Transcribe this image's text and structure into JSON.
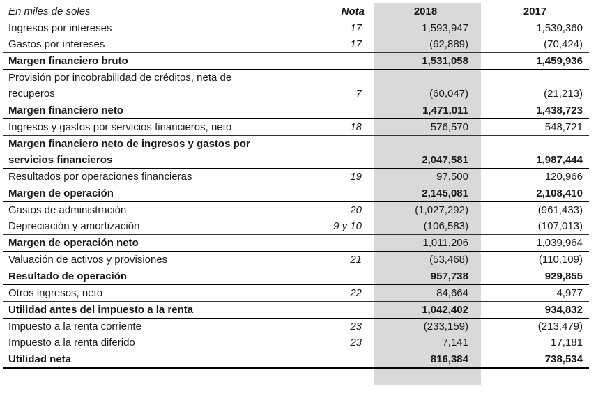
{
  "header": {
    "label": "En miles de soles",
    "nota": "Nota",
    "year1": "2018",
    "year2": "2017"
  },
  "rows": [
    {
      "label": "Ingresos por intereses",
      "nota": "17",
      "v2018": "1,593,947",
      "v2017": "1,530,360",
      "style": "plain"
    },
    {
      "label": "Gastos por intereses",
      "nota": "17",
      "v2018": "(62,889)",
      "v2017": "(70,424)",
      "style": "row"
    },
    {
      "label": "Margen financiero bruto",
      "nota": "",
      "v2018": "1,531,058",
      "v2017": "1,459,936",
      "style": "bold"
    },
    {
      "label": "Provisión por incobrabilidad de créditos, neta de",
      "nota": "",
      "v2018": "",
      "v2017": "",
      "style": "plain"
    },
    {
      "label": "recuperos",
      "nota": "7",
      "v2018": "(60,047)",
      "v2017": "(21,213)",
      "style": "row"
    },
    {
      "label": "Margen financiero neto",
      "nota": "",
      "v2018": "1,471,011",
      "v2017": "1,438,723",
      "style": "bold"
    },
    {
      "label": "Ingresos y gastos por servicios financieros, neto",
      "nota": "18",
      "v2018": "576,570",
      "v2017": "548,721",
      "style": "row"
    },
    {
      "label": "Margen financiero neto de ingresos y gastos por",
      "nota": "",
      "v2018": "",
      "v2017": "",
      "style": "bold-plain"
    },
    {
      "label": "servicios financieros",
      "nota": "",
      "v2018": "2,047,581",
      "v2017": "1,987,444",
      "style": "bold"
    },
    {
      "label": "Resultados por operaciones financieras",
      "nota": "19",
      "v2018": "97,500",
      "v2017": "120,966",
      "style": "row"
    },
    {
      "label": "Margen de operación",
      "nota": "",
      "v2018": "2,145,081",
      "v2017": "2,108,410",
      "style": "bold"
    },
    {
      "label": "Gastos de administración",
      "nota": "20",
      "v2018": "(1,027,292)",
      "v2017": "(961,433)",
      "style": "plain"
    },
    {
      "label": "Depreciación y amortización",
      "nota": "9 y 10",
      "v2018": "(106,583)",
      "v2017": "(107,013)",
      "style": "row"
    },
    {
      "label": "Margen de operación neto",
      "nota": "",
      "v2018": "1,011,206",
      "v2017": "1,039,964",
      "style": "bold-normalnum"
    },
    {
      "label": "Valuación de activos y provisiones",
      "nota": "21",
      "v2018": "(53,468)",
      "v2017": "(110,109)",
      "style": "row"
    },
    {
      "label": "Resultado de operación",
      "nota": "",
      "v2018": "957,738",
      "v2017": "929,855",
      "style": "bold"
    },
    {
      "label": "Otros ingresos, neto",
      "nota": "22",
      "v2018": "84,664",
      "v2017": "4,977",
      "style": "row"
    },
    {
      "label": "Utilidad antes del impuesto a la renta",
      "nota": "",
      "v2018": "1,042,402",
      "v2017": "934,832",
      "style": "bold"
    },
    {
      "label": "Impuesto a la renta corriente",
      "nota": "23",
      "v2018": "(233,159)",
      "v2017": "(213,479)",
      "style": "plain"
    },
    {
      "label": "Impuesto a la renta diferido",
      "nota": "23",
      "v2018": "7,141",
      "v2017": "17,181",
      "style": "row"
    },
    {
      "label": "Utilidad neta",
      "nota": "",
      "v2018": "816,384",
      "v2017": "738,534",
      "style": "total"
    }
  ]
}
